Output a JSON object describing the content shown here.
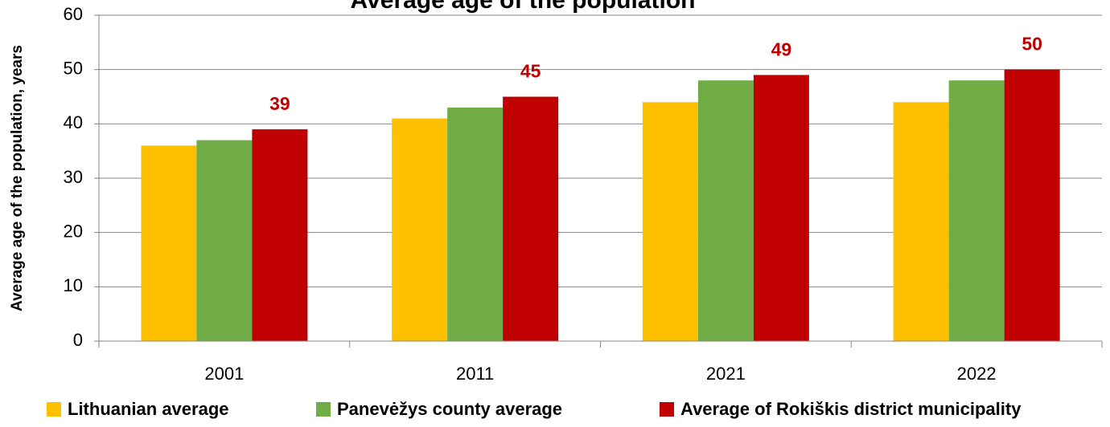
{
  "chart_data": {
    "type": "bar",
    "title": "Average age of the population",
    "y_label": "Average age of the population, years",
    "categories": [
      "2001",
      "2011",
      "2021",
      "2022"
    ],
    "series": [
      {
        "name": "Lithuanian average",
        "color": "#ffc000",
        "values": [
          36,
          41,
          44,
          44
        ]
      },
      {
        "name": "Panevėžys county average",
        "color": "#70ad47",
        "values": [
          37,
          43,
          48,
          48
        ]
      },
      {
        "name": "Average of Rokiškis district municipality",
        "color": "#c00000",
        "values": [
          39,
          45,
          49,
          50
        ],
        "data_labels": true
      }
    ],
    "ylim": [
      0,
      60
    ],
    "yticks": [
      0,
      10,
      20,
      30,
      40,
      50,
      60
    ],
    "grid": true
  }
}
